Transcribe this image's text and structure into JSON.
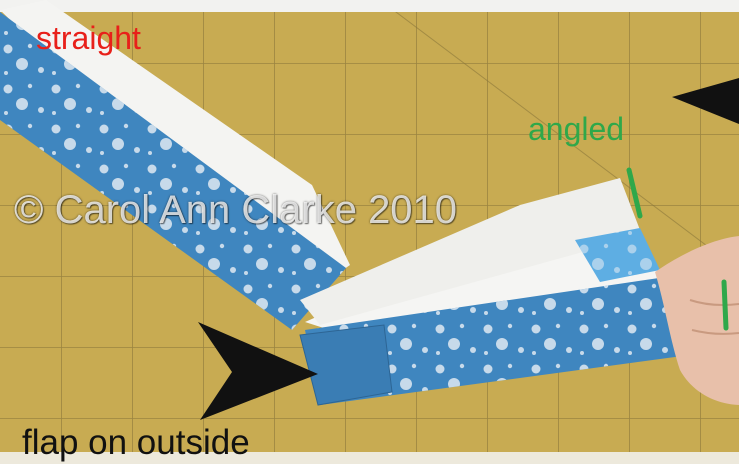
{
  "labels": {
    "straight": "straight",
    "angled": "angled",
    "flap": "flap on outside"
  },
  "watermark": "© Carol Ann Clarke 2010",
  "colors": {
    "mat": "#c9ad52",
    "grid_line": "#8e7a3a",
    "paper_blue": "#3f86bf",
    "paper_white": "#f4f4f2",
    "straight_label": "#e8201a",
    "angled_label": "#2fa84a",
    "arrow": "#111111"
  }
}
